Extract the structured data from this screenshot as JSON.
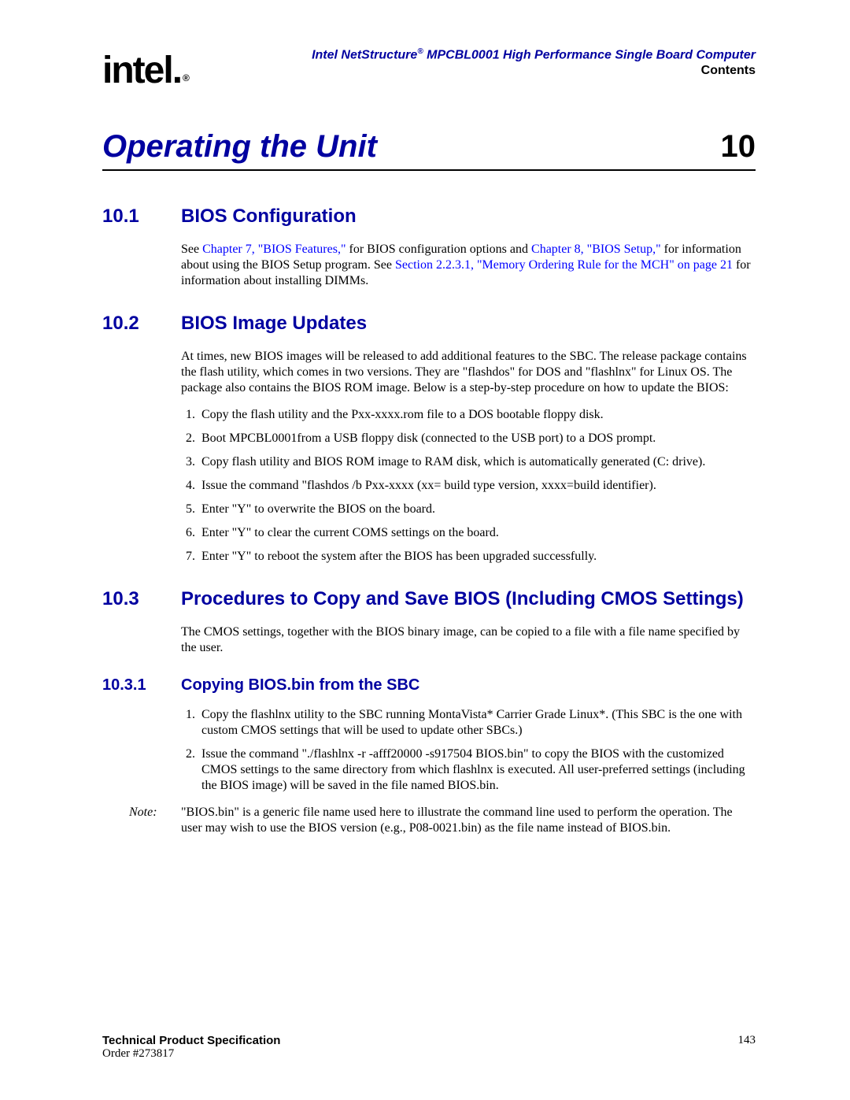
{
  "header": {
    "product_line": "Intel NetStructure",
    "reg": "®",
    "product_tail": " MPCBL0001 High Performance Single Board Computer",
    "contents": "Contents"
  },
  "logo": {
    "text": "intel",
    "reg": "®"
  },
  "chapter": {
    "title": "Operating the Unit",
    "number": "10"
  },
  "s101": {
    "num": "10.1",
    "title": "BIOS Configuration",
    "p_pre": "See ",
    "link1": "Chapter 7, \"BIOS Features,\"",
    "p_mid1": " for BIOS configuration options and ",
    "link2": "Chapter 8, \"BIOS Setup,\"",
    "p_mid2": " for information about using the BIOS Setup program. See ",
    "link3": "Section 2.2.3.1, \"Memory Ordering Rule for the MCH\" on page 21",
    "p_post": " for information about installing DIMMs."
  },
  "s102": {
    "num": "10.2",
    "title": "BIOS Image Updates",
    "intro": "At times, new BIOS images will be released to add additional features to the SBC. The release package contains the flash utility, which comes in two versions. They are \"flashdos\" for DOS and \"flashlnx\" for Linux OS. The package also contains the BIOS ROM image. Below is a step-by-step procedure on how to update the BIOS:",
    "steps": [
      "Copy the flash utility and the Pxx-xxxx.rom file to a DOS bootable floppy disk.",
      "Boot MPCBL0001from a USB floppy disk (connected to the USB port) to a DOS prompt.",
      "Copy flash utility and BIOS ROM image to RAM disk, which is automatically generated (C: drive).",
      "Issue the command \"flashdos /b Pxx-xxxx (xx= build type version, xxxx=build identifier).",
      "Enter \"Y\" to overwrite the BIOS on the board.",
      "Enter \"Y\" to clear the current COMS settings on the board.",
      "Enter \"Y\" to reboot the system after the BIOS has been upgraded successfully."
    ]
  },
  "s103": {
    "num": "10.3",
    "title": "Procedures to Copy and Save BIOS (Including CMOS Settings)",
    "intro": "The CMOS settings, together with the BIOS binary image, can be copied to a file with a file name specified by the user."
  },
  "s1031": {
    "num": "10.3.1",
    "title": "Copying BIOS.bin from the SBC",
    "steps": [
      "Copy the flashlnx utility to the SBC running MontaVista* Carrier Grade Linux*. (This SBC is the one with custom CMOS settings that will be used to update other SBCs.)",
      "Issue the command \"./flashlnx -r -afff20000 -s917504 BIOS.bin\" to copy the BIOS with the customized CMOS settings to the same directory from which flashlnx is executed. All user-preferred settings (including the BIOS image) will be saved in the file named BIOS.bin."
    ],
    "note_label": "Note:",
    "note": "\"BIOS.bin\" is a generic file name used here to illustrate the command line used to perform the operation. The user may wish to use the BIOS version (e.g., P08-0021.bin) as the file name instead of  BIOS.bin."
  },
  "footer": {
    "tps": "Technical Product Specification",
    "order": "Order #273817",
    "page": "143"
  },
  "colors": {
    "heading_blue": "#0000a0",
    "link_blue": "#0000ff",
    "text": "#000000",
    "bg": "#ffffff"
  },
  "typography": {
    "body_family": "Times New Roman",
    "heading_family": "Arial",
    "chapter_size_pt": 30,
    "h2_size_pt": 18,
    "h3_size_pt": 15,
    "body_size_pt": 12
  }
}
